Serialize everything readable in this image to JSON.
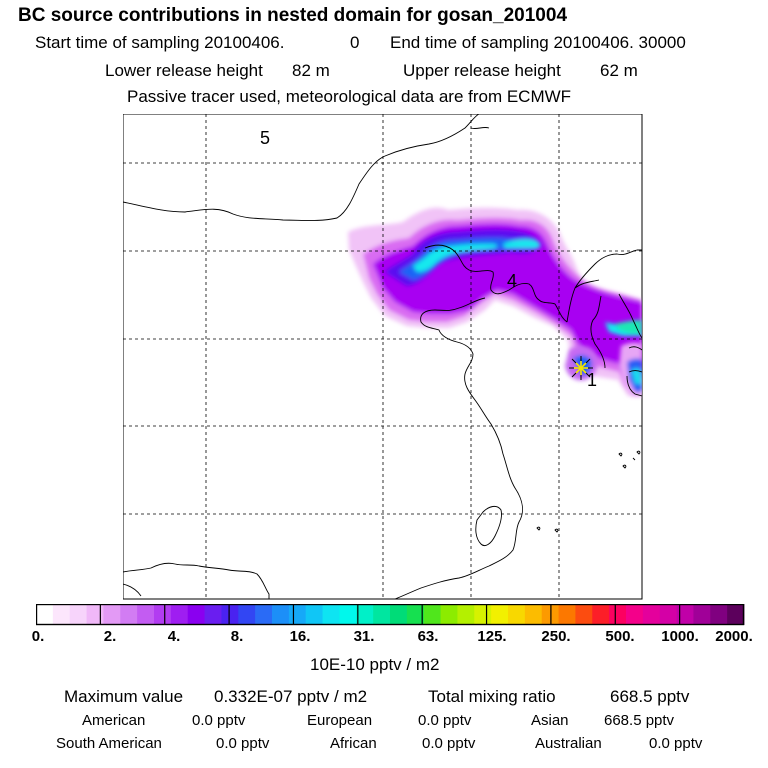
{
  "header": {
    "title": "BC  source contributions in nested domain for gosan_201004",
    "start_label": "Start time of sampling 20100406.",
    "start_value": "0",
    "end_label": "End time of sampling 20100406. 30000",
    "lower_label": "Lower release height",
    "lower_value": "82 m",
    "upper_label": "Upper release height",
    "upper_value": "62 m",
    "tracer_note": "Passive tracer used, meteorological data are from ECMWF"
  },
  "map": {
    "labels": [
      {
        "text": "5"
      },
      {
        "text": "4"
      },
      {
        "text": "1"
      }
    ],
    "site_marker": "star-marker-icon",
    "colors": {
      "light_magenta": "#f1c3f7",
      "magenta": "#d96cf2",
      "purple": "#a800f2",
      "blue_purple": "#5a10f0",
      "blue": "#1e63f5",
      "cyan": "#12e8ee",
      "teal": "#1ee8b4",
      "star": "#f2e600"
    }
  },
  "colorbar": {
    "ticks": [
      "0.",
      "2.",
      "4.",
      "8.",
      "16.",
      "31.",
      "63.",
      "125.",
      "250.",
      "500.",
      "1000.",
      "2000."
    ],
    "colors": [
      "#ffffff",
      "#fce6fc",
      "#f7d4fb",
      "#f0b8f8",
      "#e39af5",
      "#d27cf3",
      "#c35cf2",
      "#b23cf1",
      "#9f1ef1",
      "#8a00f0",
      "#6a1ef0",
      "#4a22f0",
      "#3246f3",
      "#2a6bf6",
      "#1c8ff8",
      "#16a9f8",
      "#10c6f6",
      "#0ee4f2",
      "#00f8ec",
      "#00f0c8",
      "#00e6a0",
      "#00dc78",
      "#16e050",
      "#50e61c",
      "#8cec00",
      "#b4f000",
      "#d6f200",
      "#f2f000",
      "#f8d800",
      "#fcbc00",
      "#fc9a00",
      "#fc7800",
      "#fc4c10",
      "#fc1e28",
      "#fc0060",
      "#f4008a",
      "#e4009c",
      "#d400a6",
      "#c000a8",
      "#a00098",
      "#800080",
      "#5c005c"
    ],
    "unit": "10E-10 pptv / m2"
  },
  "summary": {
    "max_label": "Maximum value",
    "max_value": "0.332E-07 pptv / m2",
    "total_label": "Total mixing ratio",
    "total_value": "668.5 pptv",
    "regions": [
      {
        "name": "American",
        "value": "0.0 pptv"
      },
      {
        "name": "European",
        "value": "0.0 pptv"
      },
      {
        "name": "Asian",
        "value": "668.5 pptv"
      },
      {
        "name": "South American",
        "value": "0.0 pptv"
      },
      {
        "name": "African",
        "value": "0.0 pptv"
      },
      {
        "name": "Australian",
        "value": "0.0 pptv"
      }
    ]
  }
}
